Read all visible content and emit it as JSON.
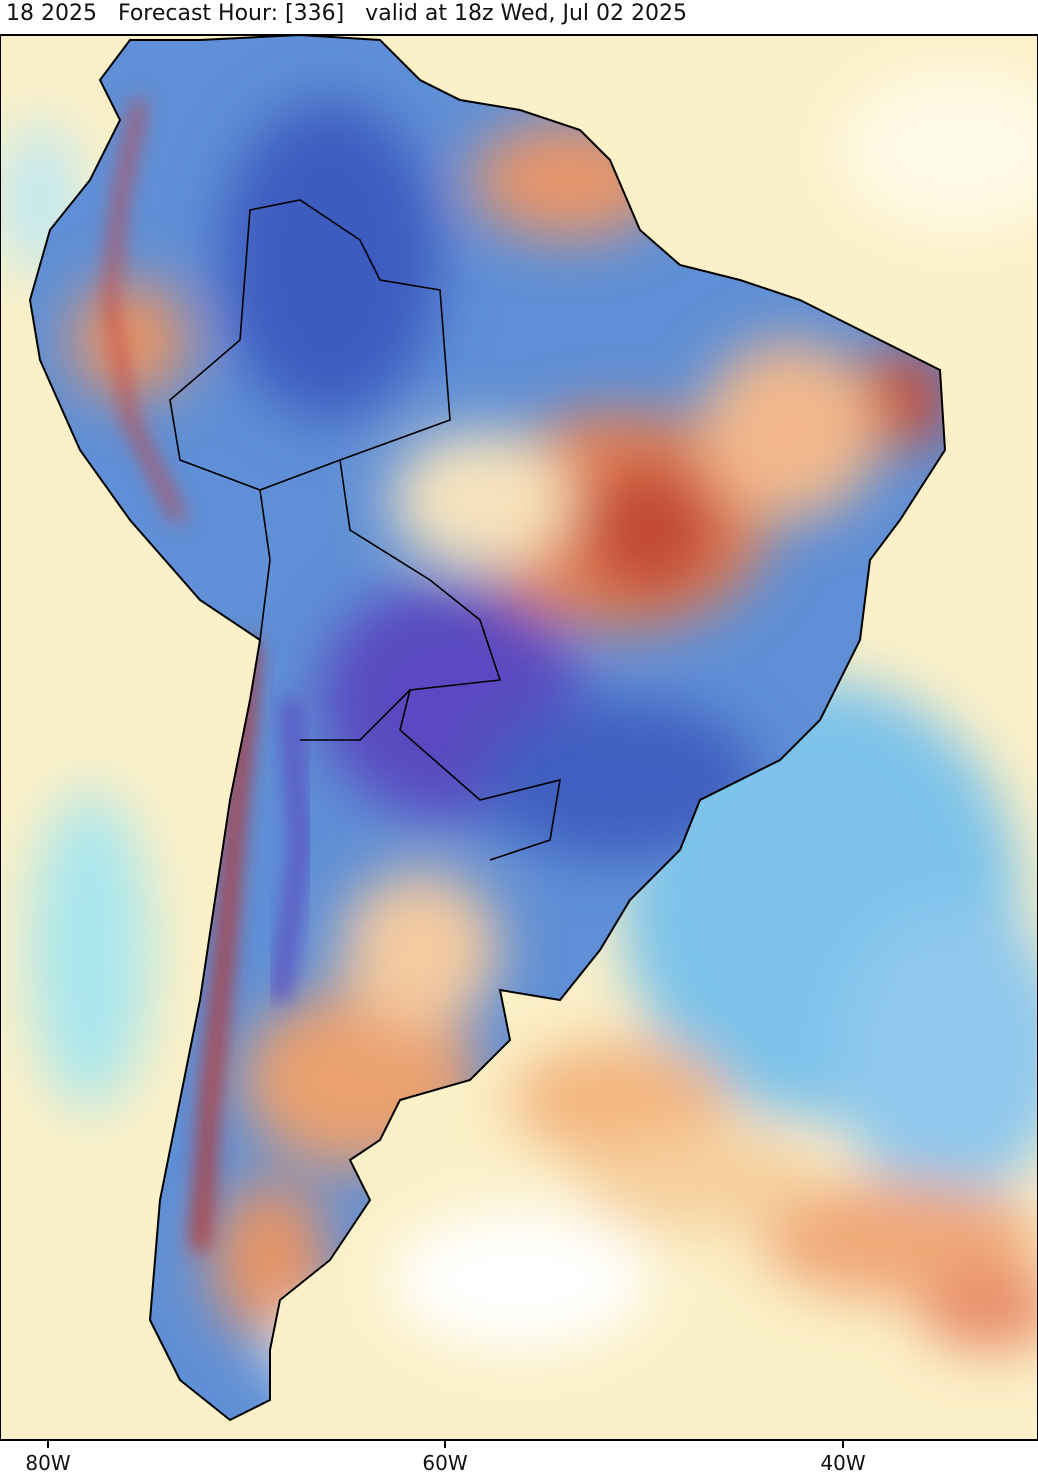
{
  "header": {
    "title": "18 2025   Forecast Hour: [336]   valid at 18z Wed, Jul 02 2025"
  },
  "map": {
    "lon_labels": [
      "80W",
      "60W",
      "40W"
    ]
  }
}
